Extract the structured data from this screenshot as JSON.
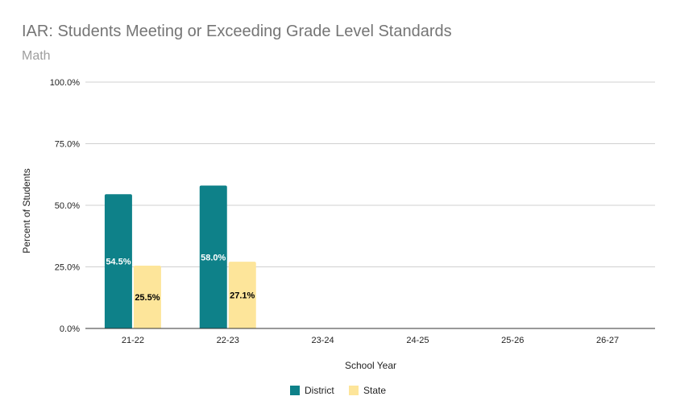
{
  "chart_data": {
    "type": "bar",
    "title": "IAR: Students Meeting or Exceeding Grade Level Standards",
    "subtitle": "Math",
    "xlabel": "School Year",
    "ylabel": "Percent of Students",
    "categories": [
      "21-22",
      "22-23",
      "23-24",
      "24-25",
      "25-26",
      "26-27"
    ],
    "series": [
      {
        "name": "District",
        "color": "#0e8189",
        "values": [
          54.5,
          58.0,
          null,
          null,
          null,
          null
        ],
        "labels": [
          "54.5%",
          "58.0%",
          "",
          "",
          "",
          ""
        ],
        "label_color": "#ffffff"
      },
      {
        "name": "State",
        "color": "#fde59a",
        "values": [
          25.5,
          27.1,
          null,
          null,
          null,
          null
        ],
        "labels": [
          "25.5%",
          "27.1%",
          "",
          "",
          "",
          ""
        ],
        "label_color": "#000000"
      }
    ],
    "ylim": [
      0,
      100
    ],
    "yticks": [
      0,
      25,
      50,
      75,
      100
    ],
    "ytick_labels": [
      "0.0%",
      "25.0%",
      "50.0%",
      "75.0%",
      "100.0%"
    ],
    "grid": true,
    "legend_position": "bottom"
  }
}
